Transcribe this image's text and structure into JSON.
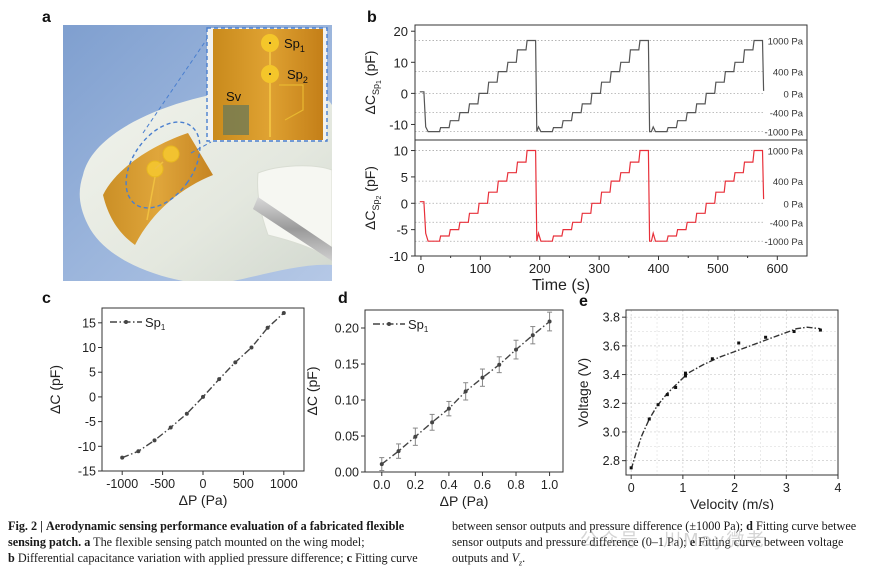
{
  "figure": {
    "panels": {
      "a": {
        "letter": "a",
        "labels": {
          "sp1": "Sp",
          "sp1_sub": "1",
          "sp2": "Sp",
          "sp2_sub": "2",
          "sv": "Sv"
        }
      },
      "b": {
        "letter": "b"
      },
      "c": {
        "letter": "c"
      },
      "d": {
        "letter": "d"
      },
      "e": {
        "letter": "e"
      }
    }
  },
  "chart_data": [
    {
      "id": "b-top",
      "type": "line",
      "title": "",
      "xlabel": "Time (s)",
      "ylabel": "ΔC_Sp1 (pF)",
      "ylabel_main": "ΔC",
      "ylabel_sub": "Sp",
      "ylabel_subsub": "1",
      "ylabel_unit": "(pF)",
      "xlim": [
        -10,
        650
      ],
      "ylim": [
        -15,
        22
      ],
      "yticks": [
        -10,
        0,
        10,
        20
      ],
      "color": "#555555",
      "levels_pF": [
        -12.3,
        -11.0,
        -8.8,
        -6.2,
        -3.4,
        0,
        3.6,
        7.0,
        10.0,
        14.0,
        17.0
      ],
      "level_pressures_Pa": [
        -1000,
        -800,
        -600,
        -400,
        -200,
        0,
        200,
        400,
        600,
        800,
        1000
      ],
      "cycle_starts_s": [
        5,
        195,
        388
      ],
      "cycle_ends_s": [
        193,
        383,
        575
      ],
      "start_value": 0.5,
      "end_value": 0.8,
      "ref_lines": [
        {
          "value": 17,
          "label": "1000 Pa"
        },
        {
          "value": 7,
          "label": "400 Pa"
        },
        {
          "value": 0,
          "label": "0 Pa"
        },
        {
          "value": -6.2,
          "label": "-400 Pa"
        },
        {
          "value": -12.3,
          "label": "-1000 Pa"
        }
      ]
    },
    {
      "id": "b-bottom",
      "type": "line",
      "xlabel": "Time (s)",
      "ylabel": "ΔC_Sp2 (pF)",
      "ylabel_main": "ΔC",
      "ylabel_sub": "Sp",
      "ylabel_subsub": "2",
      "ylabel_unit": "(pF)",
      "xlim": [
        -10,
        650
      ],
      "ylim": [
        -10,
        12
      ],
      "yticks": [
        -10,
        -5,
        0,
        5,
        10
      ],
      "xticks": [
        0,
        100,
        200,
        300,
        400,
        500,
        600
      ],
      "color": "#e8303a",
      "levels_pF": [
        -7.2,
        -6.2,
        -5.0,
        -3.6,
        -1.9,
        0,
        2.1,
        4.2,
        5.8,
        7.8,
        10.0
      ],
      "cycle_starts_s": [
        5,
        195,
        388
      ],
      "cycle_ends_s": [
        193,
        383,
        575
      ],
      "start_value": 0.3,
      "end_value": 0.8,
      "ref_lines": [
        {
          "value": 10,
          "label": "1000 Pa"
        },
        {
          "value": 4.2,
          "label": "400 Pa"
        },
        {
          "value": 0,
          "label": "0 Pa"
        },
        {
          "value": -3.6,
          "label": "-400 Pa"
        },
        {
          "value": -7.2,
          "label": "-1000 Pa"
        }
      ]
    },
    {
      "id": "c",
      "type": "line",
      "xlabel": "ΔP (Pa)",
      "ylabel": "ΔC (pF)",
      "legend": [
        {
          "name": "Sp",
          "sub": "1"
        }
      ],
      "legend_position": "top-left",
      "xlim": [
        -1250,
        1250
      ],
      "ylim": [
        -15,
        18
      ],
      "xticks": [
        -1000,
        -500,
        0,
        500,
        1000
      ],
      "yticks": [
        -15,
        -10,
        -5,
        0,
        5,
        10,
        15
      ],
      "x": [
        -1000,
        -800,
        -600,
        -400,
        -200,
        0,
        200,
        400,
        600,
        800,
        1000
      ],
      "y": [
        -12.3,
        -11.0,
        -8.8,
        -6.2,
        -3.4,
        0,
        3.6,
        7.0,
        10.0,
        14.0,
        17.0
      ]
    },
    {
      "id": "d",
      "type": "line",
      "xlabel": "ΔP (Pa)",
      "ylabel": "ΔC (pF)",
      "legend": [
        {
          "name": "Sp",
          "sub": "1"
        }
      ],
      "legend_position": "top-left",
      "xlim": [
        -0.1,
        1.08
      ],
      "ylim": [
        0,
        0.225
      ],
      "xticks": [
        0.0,
        0.2,
        0.4,
        0.6,
        0.8,
        1.0
      ],
      "xtick_labels": [
        "0.0",
        "0.2",
        "0.4",
        "0.6",
        "0.8",
        "1.0"
      ],
      "yticks": [
        0.0,
        0.05,
        0.1,
        0.15,
        0.2
      ],
      "ytick_labels": [
        "0.00",
        "0.05",
        "0.10",
        "0.15",
        "0.20"
      ],
      "x": [
        0.0,
        0.1,
        0.2,
        0.3,
        0.4,
        0.5,
        0.6,
        0.7,
        0.8,
        0.9,
        1.0
      ],
      "y": [
        0.011,
        0.029,
        0.049,
        0.069,
        0.088,
        0.112,
        0.131,
        0.149,
        0.17,
        0.19,
        0.209
      ],
      "error": [
        0.009,
        0.01,
        0.012,
        0.011,
        0.01,
        0.012,
        0.012,
        0.011,
        0.013,
        0.012,
        0.013
      ]
    },
    {
      "id": "e",
      "type": "scatter",
      "xlabel": "Velocity (m/s)",
      "ylabel": "Voltage (V)",
      "xlim": [
        -0.1,
        4
      ],
      "ylim": [
        2.7,
        3.85
      ],
      "xticks": [
        0,
        1,
        2,
        3,
        4
      ],
      "yticks": [
        2.8,
        3.0,
        3.2,
        3.4,
        3.6,
        3.8
      ],
      "ytick_labels": [
        "2.8",
        "3.0",
        "3.2",
        "3.4",
        "3.6",
        "3.8"
      ],
      "grid": true,
      "x": [
        0.0,
        0.35,
        0.52,
        0.7,
        0.86,
        1.05,
        1.05,
        1.57,
        2.08,
        2.6,
        3.15,
        3.66
      ],
      "y": [
        2.75,
        3.09,
        3.19,
        3.26,
        3.31,
        3.39,
        3.41,
        3.51,
        3.62,
        3.66,
        3.7,
        3.71
      ],
      "fit_x": [
        0.0,
        0.1,
        0.2,
        0.35,
        0.5,
        0.7,
        0.9,
        1.1,
        1.4,
        1.7,
        2.0,
        2.3,
        2.6,
        2.9,
        3.2,
        3.4,
        3.66
      ],
      "fit_y": [
        2.74,
        2.86,
        2.97,
        3.09,
        3.18,
        3.27,
        3.34,
        3.41,
        3.47,
        3.52,
        3.56,
        3.6,
        3.64,
        3.68,
        3.72,
        3.73,
        3.72
      ]
    }
  ],
  "caption": {
    "fig_label": "Fig. 2 |",
    "title": "Aerodynamic sensing performance evaluation of a fabricated flexible sensing patch.",
    "a_label": "a",
    "a_text": "The flexible sensing patch mounted on the wing model;",
    "b_label": "b",
    "b_text": "Differential capacitance variation with applied pressure difference;",
    "c_label": "c",
    "c_text": "Fitting curve between sensor outputs and pressure difference (±1000 Pa);",
    "d_label": "d",
    "d_text": "Fitting curve betwee sensor outputs and pressure difference (0–1 Pa);",
    "e_label": "e",
    "e_text": "Fitting curve between voltage outputs and",
    "e_var": "V",
    "e_var_sub": "z",
    "e_end": "."
  },
  "watermark": "公众号 · 川May微老"
}
